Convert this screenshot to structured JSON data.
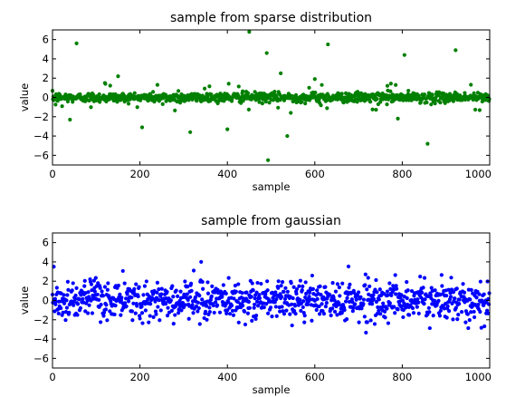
{
  "chart_data": [
    {
      "type": "scatter",
      "title": "sample from sparse distribution",
      "xlabel": "sample",
      "ylabel": "value",
      "xlim": [
        0,
        1000
      ],
      "ylim": [
        -7,
        7
      ],
      "xticks": [
        "0",
        "200",
        "400",
        "600",
        "800",
        "1000"
      ],
      "yticks": [
        "6",
        "4",
        "2",
        "0",
        "−2",
        "−4",
        "−6"
      ],
      "color": "#008000",
      "grid": false,
      "n_points": 1000,
      "distribution": "sparse: mostly near zero (std ~0.25) with occasional large outliers",
      "outliers": [
        {
          "x": 55,
          "y": 5.6
        },
        {
          "x": 150,
          "y": 2.2
        },
        {
          "x": 120,
          "y": 1.5
        },
        {
          "x": 205,
          "y": -3.1
        },
        {
          "x": 315,
          "y": -3.6
        },
        {
          "x": 400,
          "y": -3.3
        },
        {
          "x": 450,
          "y": 6.8
        },
        {
          "x": 490,
          "y": 4.6
        },
        {
          "x": 493,
          "y": -6.5
        },
        {
          "x": 522,
          "y": 2.5
        },
        {
          "x": 537,
          "y": -4.0
        },
        {
          "x": 630,
          "y": 5.5
        },
        {
          "x": 600,
          "y": 1.9
        },
        {
          "x": 805,
          "y": 4.4
        },
        {
          "x": 858,
          "y": -4.8
        },
        {
          "x": 922,
          "y": 4.9
        },
        {
          "x": 40,
          "y": -2.3
        },
        {
          "x": 790,
          "y": -2.2
        },
        {
          "x": 545,
          "y": -1.6
        },
        {
          "x": 240,
          "y": 1.3
        }
      ]
    },
    {
      "type": "scatter",
      "title": "sample from gaussian",
      "xlabel": "sample",
      "ylabel": "value",
      "xlim": [
        0,
        1000
      ],
      "ylim": [
        -7,
        7
      ],
      "xticks": [
        "0",
        "200",
        "400",
        "600",
        "800",
        "1000"
      ],
      "yticks": [
        "6",
        "4",
        "2",
        "0",
        "−2",
        "−4",
        "−6"
      ],
      "color": "#0000ff",
      "grid": false,
      "n_points": 1000,
      "distribution": "gaussian, mean 0, std ~1",
      "highlights": [
        {
          "x": 340,
          "y": 4.0
        },
        {
          "x": 3,
          "y": 3.5
        }
      ]
    }
  ]
}
